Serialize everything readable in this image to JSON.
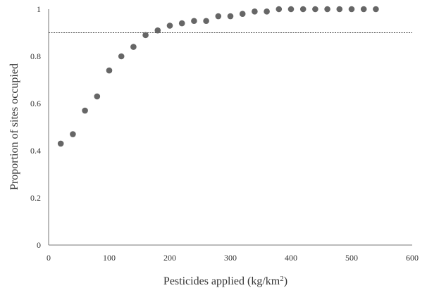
{
  "chart_data": {
    "type": "scatter",
    "xlabel": "Pesticides applied (kg/km",
    "xlabel_superscript": "2",
    "xlabel_suffix": ")",
    "ylabel": "Proportion of sites occupied",
    "xlim": [
      0,
      600
    ],
    "ylim": [
      0,
      1
    ],
    "x_ticks": [
      0,
      100,
      200,
      300,
      400,
      500,
      600
    ],
    "y_ticks": [
      0,
      0.2,
      0.4,
      0.6,
      0.8,
      1
    ],
    "x_tick_labels": [
      "0",
      "100",
      "200",
      "300",
      "400",
      "500",
      "600"
    ],
    "y_tick_labels": [
      "0",
      "0.2",
      "0.4",
      "0.6",
      "0.8",
      "1"
    ],
    "grid": false,
    "reference_line": {
      "y": 0.9,
      "style": "dashed"
    },
    "marker_color": "#666666",
    "points": [
      {
        "x": 20,
        "y": 0.43
      },
      {
        "x": 40,
        "y": 0.47
      },
      {
        "x": 60,
        "y": 0.57
      },
      {
        "x": 80,
        "y": 0.63
      },
      {
        "x": 100,
        "y": 0.74
      },
      {
        "x": 120,
        "y": 0.8
      },
      {
        "x": 140,
        "y": 0.84
      },
      {
        "x": 160,
        "y": 0.89
      },
      {
        "x": 180,
        "y": 0.91
      },
      {
        "x": 200,
        "y": 0.93
      },
      {
        "x": 220,
        "y": 0.94
      },
      {
        "x": 240,
        "y": 0.95
      },
      {
        "x": 260,
        "y": 0.95
      },
      {
        "x": 280,
        "y": 0.97
      },
      {
        "x": 300,
        "y": 0.97
      },
      {
        "x": 320,
        "y": 0.98
      },
      {
        "x": 340,
        "y": 0.99
      },
      {
        "x": 360,
        "y": 0.99
      },
      {
        "x": 380,
        "y": 1.0
      },
      {
        "x": 400,
        "y": 1.0
      },
      {
        "x": 420,
        "y": 1.0
      },
      {
        "x": 440,
        "y": 1.0
      },
      {
        "x": 460,
        "y": 1.0
      },
      {
        "x": 480,
        "y": 1.0
      },
      {
        "x": 500,
        "y": 1.0
      },
      {
        "x": 520,
        "y": 1.0
      },
      {
        "x": 540,
        "y": 1.0
      }
    ]
  }
}
